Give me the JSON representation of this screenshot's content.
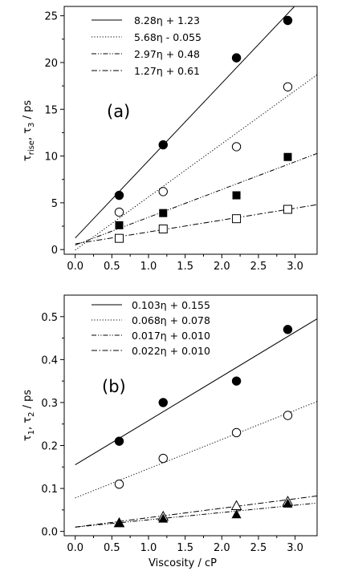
{
  "chart_data": [
    {
      "type": "scatter",
      "panel_label": "(a)",
      "ylabel_main": "τ",
      "ylabel_sub1": "rise",
      "ylabel_mid": ", τ",
      "ylabel_sub2": "3",
      "ylabel_tail": " / ps",
      "xlabel": "",
      "xlim": [
        -0.15,
        3.3
      ],
      "ylim": [
        -0.5,
        26
      ],
      "xticks": [
        "0.0",
        "0.5",
        "1.0",
        "1.5",
        "2.0",
        "2.5",
        "3.0"
      ],
      "yticks": [
        "0",
        "5",
        "10",
        "15",
        "20",
        "25"
      ],
      "legend_position": "top-left",
      "series": [
        {
          "name": "8.28η + 1.23",
          "marker": "filled-circle",
          "line": "solid",
          "slope": 8.28,
          "intercept": 1.23,
          "x": [
            0.6,
            1.2,
            2.2,
            2.9
          ],
          "y": [
            5.8,
            11.2,
            20.5,
            24.5
          ]
        },
        {
          "name": "5.68η - 0.055",
          "marker": "open-circle",
          "line": "dotted",
          "slope": 5.68,
          "intercept": -0.055,
          "x": [
            0.6,
            1.2,
            2.2,
            2.9
          ],
          "y": [
            4.0,
            6.2,
            11.0,
            17.4
          ]
        },
        {
          "name": "2.97η + 0.48",
          "marker": "filled-square",
          "line": "dash-dot-dot",
          "slope": 2.97,
          "intercept": 0.48,
          "x": [
            0.6,
            1.2,
            2.2,
            2.9
          ],
          "y": [
            2.6,
            3.9,
            5.8,
            9.9
          ]
        },
        {
          "name": "1.27η + 0.61",
          "marker": "open-square",
          "line": "dash-dot",
          "slope": 1.27,
          "intercept": 0.61,
          "x": [
            0.6,
            1.2,
            2.2,
            2.9
          ],
          "y": [
            1.2,
            2.2,
            3.3,
            4.3
          ]
        }
      ]
    },
    {
      "type": "scatter",
      "panel_label": "(b)",
      "ylabel_main": "τ",
      "ylabel_sub1": "1",
      "ylabel_mid": ", τ",
      "ylabel_sub2": "2",
      "ylabel_tail": " / ps",
      "xlabel": "Viscosity / cP",
      "xlim": [
        -0.15,
        3.3
      ],
      "ylim": [
        -0.01,
        0.55
      ],
      "xticks": [
        "0.0",
        "0.5",
        "1.0",
        "1.5",
        "2.0",
        "2.5",
        "3.0"
      ],
      "yticks": [
        "0.0",
        "0.1",
        "0.2",
        "0.3",
        "0.4",
        "0.5"
      ],
      "legend_position": "top-left",
      "series": [
        {
          "name": "0.103η + 0.155",
          "marker": "filled-circle",
          "line": "solid",
          "slope": 0.103,
          "intercept": 0.155,
          "x": [
            0.6,
            1.2,
            2.2,
            2.9
          ],
          "y": [
            0.21,
            0.3,
            0.35,
            0.47
          ]
        },
        {
          "name": "0.068η + 0.078",
          "marker": "open-circle",
          "line": "dotted",
          "slope": 0.068,
          "intercept": 0.078,
          "x": [
            0.6,
            1.2,
            2.2,
            2.9
          ],
          "y": [
            0.11,
            0.17,
            0.23,
            0.27
          ]
        },
        {
          "name": "0.017η + 0.010",
          "marker": "open-triangle",
          "line": "dash-dot-dot",
          "slope": 0.017,
          "intercept": 0.01,
          "x": [
            0.6,
            1.2,
            2.2,
            2.9
          ],
          "y": [
            0.02,
            0.035,
            0.06,
            0.07
          ]
        },
        {
          "name": "0.022η + 0.010",
          "marker": "filled-triangle",
          "line": "dash-dot",
          "slope": 0.022,
          "intercept": 0.01,
          "x": [
            0.6,
            1.2,
            2.2,
            2.9
          ],
          "y": [
            0.02,
            0.03,
            0.04,
            0.065
          ]
        }
      ]
    }
  ]
}
